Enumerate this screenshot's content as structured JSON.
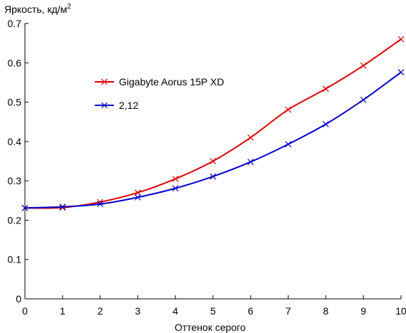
{
  "chart_data": {
    "type": "line",
    "ylabel": "Яркость, кд/м",
    "ylabel_sup": "2",
    "xlabel": "Оттенок серого",
    "xlim": [
      0,
      10
    ],
    "ylim": [
      0,
      0.7
    ],
    "x_ticks": [
      "0",
      "1",
      "2",
      "3",
      "4",
      "5",
      "6",
      "7",
      "8",
      "9",
      "10"
    ],
    "y_ticks": [
      "0",
      "0.1",
      "0.2",
      "0.3",
      "0.4",
      "0.5",
      "0.6",
      "0.7"
    ],
    "grid": false,
    "legend_position": "upper-left",
    "x": [
      0,
      1,
      2,
      3,
      4,
      5,
      6,
      7,
      8,
      9,
      10
    ],
    "series": [
      {
        "name": "Gigabyte Aorus 15P XD",
        "color": "#e00000",
        "marker": "x",
        "values": [
          0.231,
          0.232,
          0.246,
          0.27,
          0.305,
          0.35,
          0.41,
          0.481,
          0.534,
          0.593,
          0.66
        ]
      },
      {
        "name": "2,12",
        "color": "#0000cc",
        "marker": "x",
        "values": [
          0.231,
          0.234,
          0.241,
          0.258,
          0.281,
          0.311,
          0.348,
          0.393,
          0.444,
          0.506,
          0.576
        ]
      }
    ]
  }
}
